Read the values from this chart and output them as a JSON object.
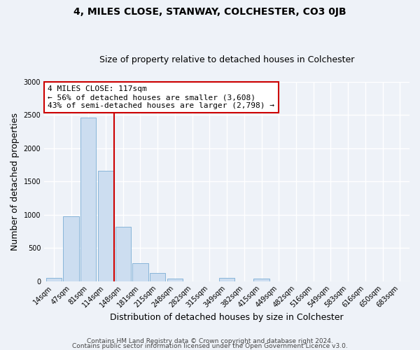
{
  "title": "4, MILES CLOSE, STANWAY, COLCHESTER, CO3 0JB",
  "subtitle": "Size of property relative to detached houses in Colchester",
  "xlabel": "Distribution of detached houses by size in Colchester",
  "ylabel": "Number of detached properties",
  "bar_labels": [
    "14sqm",
    "47sqm",
    "81sqm",
    "114sqm",
    "148sqm",
    "181sqm",
    "215sqm",
    "248sqm",
    "282sqm",
    "315sqm",
    "349sqm",
    "382sqm",
    "415sqm",
    "449sqm",
    "482sqm",
    "516sqm",
    "549sqm",
    "583sqm",
    "616sqm",
    "650sqm",
    "683sqm"
  ],
  "bar_values": [
    50,
    980,
    2460,
    1660,
    820,
    270,
    120,
    40,
    0,
    0,
    45,
    0,
    35,
    0,
    0,
    0,
    0,
    0,
    0,
    0,
    0
  ],
  "bar_color": "#ccddf0",
  "bar_edge_color": "#7aadd4",
  "vline_x_index": 3,
  "vline_color": "#cc0000",
  "annotation_line1": "4 MILES CLOSE: 117sqm",
  "annotation_line2": "← 56% of detached houses are smaller (3,608)",
  "annotation_line3": "43% of semi-detached houses are larger (2,798) →",
  "annotation_box_facecolor": "#ffffff",
  "annotation_box_edgecolor": "#cc0000",
  "ylim": [
    0,
    3000
  ],
  "yticks": [
    0,
    500,
    1000,
    1500,
    2000,
    2500,
    3000
  ],
  "footer_line1": "Contains HM Land Registry data © Crown copyright and database right 2024.",
  "footer_line2": "Contains public sector information licensed under the Open Government Licence v3.0.",
  "background_color": "#eef2f8",
  "plot_background": "#eef2f8",
  "grid_color": "#ffffff",
  "title_fontsize": 10,
  "subtitle_fontsize": 9,
  "xlabel_fontsize": 9,
  "ylabel_fontsize": 9,
  "tick_fontsize": 7,
  "annotation_fontsize": 8,
  "footer_fontsize": 6.5
}
